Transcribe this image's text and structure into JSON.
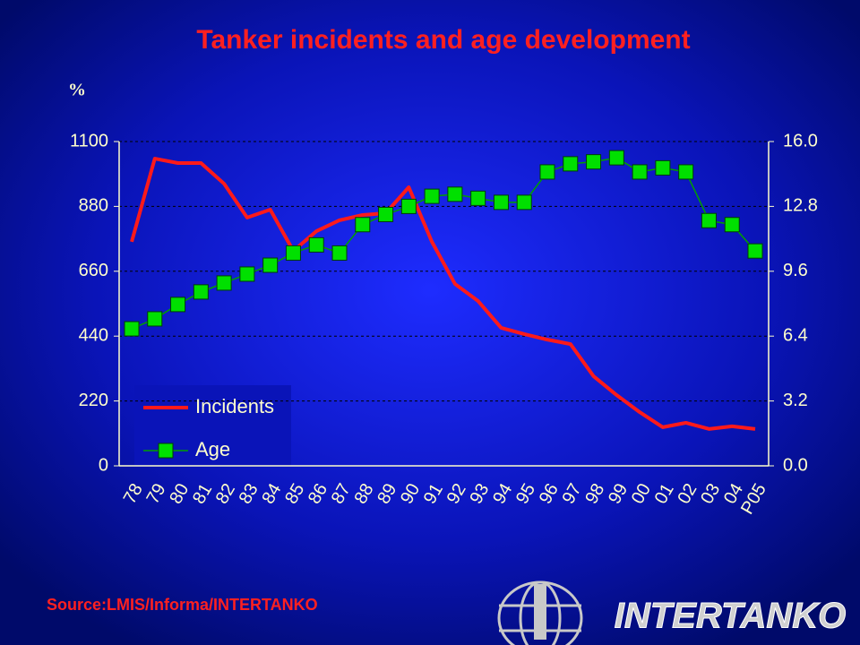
{
  "chart_data": {
    "type": "line",
    "title": "Tanker incidents and age development",
    "y_label": "%",
    "source": "Source:LMIS/Informa/INTERTANKO",
    "categories": [
      "78",
      "79",
      "80",
      "81",
      "82",
      "83",
      "84",
      "85",
      "86",
      "87",
      "88",
      "89",
      "90",
      "91",
      "92",
      "93",
      "94",
      "95",
      "96",
      "97",
      "98",
      "99",
      "00",
      "01",
      "02",
      "03",
      "04",
      "P05"
    ],
    "series": [
      {
        "name": "Incidents",
        "color": "#ff1a1a",
        "values": [
          760,
          1042,
          1027,
          1027,
          957,
          842,
          869,
          729,
          796,
          833,
          851,
          857,
          945,
          760,
          617,
          559,
          468,
          447,
          428,
          413,
          304,
          240,
          182,
          131,
          146,
          125,
          134,
          125
        ]
      },
      {
        "name": "Age",
        "color": "#00e000",
        "axis": "y2",
        "values": [
          6.76,
          7.25,
          7.96,
          8.58,
          9.02,
          9.46,
          9.9,
          10.5,
          10.9,
          10.5,
          11.9,
          12.4,
          12.8,
          13.3,
          13.4,
          13.2,
          13.0,
          13.0,
          14.5,
          14.9,
          15.0,
          15.2,
          14.5,
          14.7,
          14.5,
          12.1,
          11.9,
          10.6
        ]
      }
    ],
    "ylim": [
      0,
      1100
    ],
    "yticks": [
      0,
      220,
      440,
      660,
      880,
      1100
    ],
    "y2lim": [
      0,
      16
    ],
    "y2ticks": [
      {
        "value": 0,
        "label": "0.0"
      },
      3.2,
      6.4,
      9.6,
      12.8,
      {
        "value": 16,
        "label": "16.0"
      }
    ],
    "grid": true,
    "legend": "lower left"
  },
  "logo": "INTERTANKO"
}
